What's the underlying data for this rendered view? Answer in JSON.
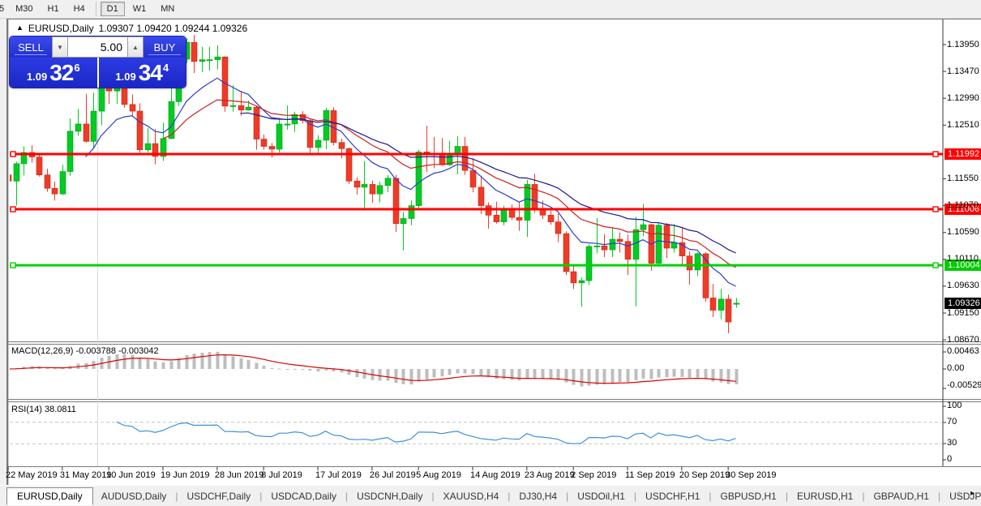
{
  "toolbar": {
    "items": [
      {
        "label": "5",
        "active": false,
        "partial": true
      },
      {
        "label": "M30",
        "active": false
      },
      {
        "label": "H1",
        "active": false
      },
      {
        "label": "H4",
        "active": false
      },
      {
        "label": "|",
        "separator": true
      },
      {
        "label": "D1",
        "active": true
      },
      {
        "label": "W1",
        "active": false
      },
      {
        "label": "MN",
        "active": false
      }
    ]
  },
  "chart": {
    "title": {
      "symbol": "EURUSD,Daily",
      "values": "1.09307 1.09420 1.09244 1.09326",
      "collapse_icon": "▲"
    },
    "trade": {
      "sell_label": "SELL",
      "buy_label": "BUY",
      "volume": "5.00",
      "spin_down": "▼",
      "spin_up": "▲",
      "sell_small": "1.09",
      "sell_big": "32",
      "sell_sup": "6",
      "buy_small": "1.09",
      "buy_big": "34",
      "buy_sup": "4"
    },
    "price_labels": {
      "r1": {
        "text": "1.11992",
        "price": 1.11992,
        "color": "red"
      },
      "r2": {
        "text": "1.11006",
        "price": 1.11006,
        "color": "red"
      },
      "g1": {
        "text": "1.10004",
        "price": 1.10004,
        "color": "green"
      },
      "cur": {
        "text": "1.09326",
        "price": 1.09326,
        "color": "black"
      }
    },
    "macd": {
      "label": "MACD(12,26,9) -0.003788 -0.003042",
      "ticks": [
        "0.00463",
        "0.00",
        "-0.005299"
      ]
    },
    "rsi": {
      "label": "RSI(14) 38.0811",
      "ticks": [
        "100",
        "70",
        "30",
        "0"
      ]
    }
  },
  "tabs": {
    "items": [
      {
        "label": "EURUSD,Daily",
        "active": true
      },
      {
        "label": "AUDUSD,Daily",
        "active": false
      },
      {
        "label": "USDCHF,Daily",
        "active": false
      },
      {
        "label": "USDCAD,Daily",
        "active": false
      },
      {
        "label": "USDCNH,Daily",
        "active": false
      },
      {
        "label": "XAUUSD,H4",
        "active": false
      },
      {
        "label": "DJ30,H4",
        "active": false
      },
      {
        "label": "USDOil,H1",
        "active": false
      },
      {
        "label": "USDCHF,H1",
        "active": false
      },
      {
        "label": "GBPUSD,H1",
        "active": false
      },
      {
        "label": "EURUSD,H1",
        "active": false
      },
      {
        "label": "GBPAUD,H1",
        "active": false
      },
      {
        "label": "USDJP",
        "active": false
      }
    ],
    "scroll_left": "◂",
    "scroll_right": "▸"
  },
  "colors": {
    "up": "#00cc22",
    "up_edge": "#009a18",
    "down": "#ef3b26",
    "down_edge": "#c4281a",
    "hline_red": "#ff0000",
    "hline_green": "#00d200",
    "ma_fast": "#2b3cc8",
    "ma_mid": "#cc2020",
    "ma_slow": "#1a1a8c",
    "macd_bar": "#bdbdbd",
    "macd_signal": "#dd0000",
    "rsi_line": "#3e8ede",
    "grid_dash": "#c4c4c4",
    "vline_obj": "#d9d9d9"
  },
  "chart_data": {
    "type": "candlestick",
    "symbol": "EURUSD",
    "timeframe": "Daily",
    "ohlc_display": {
      "open": 1.09307,
      "high": 1.0942,
      "low": 1.09244,
      "close": 1.09326
    },
    "y_axis": {
      "min": 1.085,
      "max": 1.143,
      "ticks": [
        1.1395,
        1.1347,
        1.1299,
        1.1251,
        1.1155,
        1.1107,
        1.1059,
        1.1011,
        1.0963,
        1.0915,
        1.0867
      ]
    },
    "x_ticks": [
      {
        "label": "22 May 2019",
        "bar": 0
      },
      {
        "label": "31 May 2019",
        "bar": 7
      },
      {
        "label": "10 Jun 2019",
        "bar": 13
      },
      {
        "label": "19 Jun 2019",
        "bar": 20
      },
      {
        "label": "28 Jun 2019",
        "bar": 27
      },
      {
        "label": "8 Jul 2019",
        "bar": 33
      },
      {
        "label": "17 Jul 2019",
        "bar": 40
      },
      {
        "label": "26 Jul 2019",
        "bar": 47
      },
      {
        "label": "5 Aug 2019",
        "bar": 53
      },
      {
        "label": "14 Aug 2019",
        "bar": 60
      },
      {
        "label": "23 Aug 2019",
        "bar": 67
      },
      {
        "label": "2 Sep 2019",
        "bar": 73
      },
      {
        "label": "11 Sep 2019",
        "bar": 80
      },
      {
        "label": "20 Sep 2019",
        "bar": 87
      },
      {
        "label": "30 Sep 2019",
        "bar": 93
      }
    ],
    "horizontal_lines": [
      {
        "price": 1.11992,
        "color": "#ff0000"
      },
      {
        "price": 1.11006,
        "color": "#ff0000"
      },
      {
        "price": 1.10004,
        "color": "#00d200"
      }
    ],
    "moving_averages": [
      {
        "period": 10,
        "color": "#2b3cc8"
      },
      {
        "period": 20,
        "color": "#cc2020"
      },
      {
        "period": 30,
        "color": "#1a1a8c"
      }
    ],
    "indicators": [
      {
        "name": "MACD",
        "params": "12,26,9",
        "values": [
          -0.003788,
          -0.003042
        ],
        "axis": [
          0.00463,
          0.0,
          -0.005299
        ]
      },
      {
        "name": "RSI",
        "params": "14",
        "value": 38.0811,
        "axis": [
          100,
          70,
          30,
          0
        ]
      }
    ],
    "candles": [
      [
        "05-22",
        1.1162,
        1.1188,
        1.1142,
        1.1151
      ],
      [
        "05-23",
        1.1151,
        1.1186,
        1.1107,
        1.1182
      ],
      [
        "05-24",
        1.1182,
        1.1213,
        1.1161,
        1.1202
      ],
      [
        "05-27",
        1.1202,
        1.1215,
        1.1184,
        1.1194
      ],
      [
        "05-28",
        1.1194,
        1.12,
        1.1159,
        1.1162
      ],
      [
        "05-29",
        1.1162,
        1.1173,
        1.1132,
        1.1138
      ],
      [
        "05-30",
        1.1138,
        1.115,
        1.1116,
        1.1128
      ],
      [
        "05-31",
        1.1128,
        1.118,
        1.1126,
        1.1168
      ],
      [
        "06-03",
        1.1168,
        1.1263,
        1.116,
        1.124
      ],
      [
        "06-04",
        1.124,
        1.128,
        1.1232,
        1.1253
      ],
      [
        "06-05",
        1.1253,
        1.1307,
        1.122,
        1.1222
      ],
      [
        "06-06",
        1.1222,
        1.1309,
        1.121,
        1.1276
      ],
      [
        "06-07",
        1.1276,
        1.1348,
        1.1251,
        1.1334
      ],
      [
        "06-10",
        1.1334,
        1.1336,
        1.1289,
        1.1312
      ],
      [
        "06-11",
        1.1312,
        1.1338,
        1.1289,
        1.1326
      ],
      [
        "06-12",
        1.1326,
        1.1344,
        1.1282,
        1.1288
      ],
      [
        "06-13",
        1.1288,
        1.1306,
        1.1268,
        1.1276
      ],
      [
        "06-14",
        1.1276,
        1.129,
        1.1202,
        1.1207
      ],
      [
        "06-17",
        1.1207,
        1.1246,
        1.1202,
        1.1218
      ],
      [
        "06-18",
        1.1218,
        1.1244,
        1.1181,
        1.1195
      ],
      [
        "06-19",
        1.1195,
        1.1255,
        1.1187,
        1.1227
      ],
      [
        "06-20",
        1.1227,
        1.1318,
        1.1226,
        1.1293
      ],
      [
        "06-21",
        1.1293,
        1.1378,
        1.1285,
        1.1369
      ],
      [
        "06-24",
        1.1369,
        1.1406,
        1.1362,
        1.1399
      ],
      [
        "06-25",
        1.1399,
        1.1412,
        1.1344,
        1.1365
      ],
      [
        "06-26",
        1.1365,
        1.1391,
        1.1346,
        1.1368
      ],
      [
        "06-27",
        1.1368,
        1.1391,
        1.1348,
        1.1368
      ],
      [
        "06-28",
        1.1368,
        1.1394,
        1.1351,
        1.1373
      ],
      [
        "07-01",
        1.1373,
        1.1374,
        1.1275,
        1.1285
      ],
      [
        "07-02",
        1.1285,
        1.1322,
        1.1275,
        1.1286
      ],
      [
        "07-03",
        1.1286,
        1.1312,
        1.1268,
        1.1278
      ],
      [
        "07-04",
        1.1278,
        1.1295,
        1.1277,
        1.1283
      ],
      [
        "07-05",
        1.1283,
        1.1286,
        1.1207,
        1.1226
      ],
      [
        "07-08",
        1.1226,
        1.1234,
        1.1207,
        1.1213
      ],
      [
        "07-09",
        1.1213,
        1.1219,
        1.1193,
        1.1208
      ],
      [
        "07-10",
        1.1208,
        1.1264,
        1.1202,
        1.1253
      ],
      [
        "07-11",
        1.1253,
        1.1286,
        1.1243,
        1.1253
      ],
      [
        "07-12",
        1.1253,
        1.1275,
        1.1239,
        1.127
      ],
      [
        "07-15",
        1.127,
        1.1276,
        1.1254,
        1.1259
      ],
      [
        "07-16",
        1.1259,
        1.1263,
        1.1201,
        1.1211
      ],
      [
        "07-17",
        1.1211,
        1.1233,
        1.1201,
        1.1224
      ],
      [
        "07-18",
        1.1224,
        1.1282,
        1.1208,
        1.1277
      ],
      [
        "07-19",
        1.1277,
        1.1283,
        1.1215,
        1.122
      ],
      [
        "07-22",
        1.122,
        1.1227,
        1.1192,
        1.1209
      ],
      [
        "07-23",
        1.1209,
        1.1211,
        1.1146,
        1.1151
      ],
      [
        "07-24",
        1.1151,
        1.1158,
        1.1127,
        1.114
      ],
      [
        "07-25",
        1.114,
        1.1187,
        1.1102,
        1.1145
      ],
      [
        "07-26",
        1.1145,
        1.1152,
        1.1112,
        1.1128
      ],
      [
        "07-29",
        1.1128,
        1.115,
        1.1113,
        1.1143
      ],
      [
        "07-30",
        1.1143,
        1.1162,
        1.1131,
        1.1156
      ],
      [
        "07-31",
        1.1156,
        1.1162,
        1.106,
        1.1075
      ],
      [
        "08-01",
        1.1075,
        1.1096,
        1.1027,
        1.1084
      ],
      [
        "08-02",
        1.1084,
        1.1116,
        1.1072,
        1.1107
      ],
      [
        "08-05",
        1.1107,
        1.1207,
        1.1101,
        1.1203
      ],
      [
        "08-06",
        1.1203,
        1.125,
        1.1167,
        1.12
      ],
      [
        "08-07",
        1.12,
        1.123,
        1.1174,
        1.1199
      ],
      [
        "08-08",
        1.1199,
        1.1228,
        1.1178,
        1.118
      ],
      [
        "08-09",
        1.118,
        1.1223,
        1.1178,
        1.12
      ],
      [
        "08-12",
        1.12,
        1.1231,
        1.1163,
        1.1213
      ],
      [
        "08-13",
        1.1213,
        1.123,
        1.1162,
        1.117
      ],
      [
        "08-14",
        1.117,
        1.1192,
        1.1131,
        1.114
      ],
      [
        "08-15",
        1.114,
        1.116,
        1.1092,
        1.1107
      ],
      [
        "08-16",
        1.1107,
        1.1113,
        1.1066,
        1.109
      ],
      [
        "08-19",
        1.109,
        1.1114,
        1.1075,
        1.1078
      ],
      [
        "08-20",
        1.1078,
        1.1107,
        1.1072,
        1.11
      ],
      [
        "08-21",
        1.11,
        1.1109,
        1.1081,
        1.1086
      ],
      [
        "08-22",
        1.1086,
        1.1113,
        1.1062,
        1.1081
      ],
      [
        "08-23",
        1.1081,
        1.1153,
        1.1051,
        1.1145
      ],
      [
        "08-26",
        1.1145,
        1.1164,
        1.1094,
        1.1101
      ],
      [
        "08-27",
        1.1101,
        1.1116,
        1.1083,
        1.109
      ],
      [
        "08-28",
        1.109,
        1.1098,
        1.1073,
        1.1078
      ],
      [
        "08-29",
        1.1078,
        1.1093,
        1.1042,
        1.1057
      ],
      [
        "08-30",
        1.1057,
        1.1061,
        1.0983,
        1.0989
      ],
      [
        "09-02",
        1.0989,
        1.0999,
        1.0958,
        1.0969
      ],
      [
        "09-03",
        1.0969,
        1.0979,
        1.0926,
        1.0973
      ],
      [
        "09-04",
        1.0973,
        1.1038,
        1.0965,
        1.1034
      ],
      [
        "09-05",
        1.1034,
        1.1085,
        1.1022,
        1.1035
      ],
      [
        "09-06",
        1.1035,
        1.1056,
        1.1015,
        1.1028
      ],
      [
        "09-09",
        1.1028,
        1.1067,
        1.1015,
        1.1047
      ],
      [
        "09-10",
        1.1047,
        1.1059,
        1.1023,
        1.1043
      ],
      [
        "09-11",
        1.1043,
        1.1055,
        1.0983,
        1.1011
      ],
      [
        "09-12",
        1.1011,
        1.1087,
        1.0927,
        1.1064
      ],
      [
        "09-13",
        1.1064,
        1.111,
        1.1052,
        1.1073
      ],
      [
        "09-16",
        1.1073,
        1.1075,
        1.0991,
        1.1004
      ],
      [
        "09-17",
        1.1004,
        1.1076,
        1.0998,
        1.1072
      ],
      [
        "09-18",
        1.1072,
        1.1076,
        1.1013,
        1.1031
      ],
      [
        "09-19",
        1.1031,
        1.1074,
        1.1023,
        1.1041
      ],
      [
        "09-20",
        1.1041,
        1.1068,
        1.1,
        1.1017
      ],
      [
        "09-23",
        1.1017,
        1.1025,
        1.0966,
        1.0992
      ],
      [
        "09-24",
        1.0992,
        1.1024,
        1.0981,
        1.1021
      ],
      [
        "09-25",
        1.1021,
        1.1024,
        1.0935,
        1.0942
      ],
      [
        "09-26",
        1.0942,
        1.0967,
        1.0908,
        1.092
      ],
      [
        "09-27",
        1.092,
        1.0958,
        1.0904,
        1.094
      ],
      [
        "09-30",
        1.094,
        1.0948,
        1.0879,
        1.0899
      ],
      [
        "10-01",
        1.09307,
        1.0942,
        1.09244,
        1.09326
      ]
    ]
  }
}
